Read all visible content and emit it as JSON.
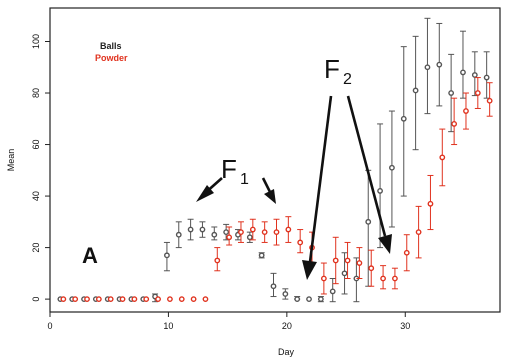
{
  "chart_data": {
    "type": "scatter",
    "xlabel": "Day",
    "ylabel": "Mean",
    "xlim": [
      0,
      38
    ],
    "ylim": [
      -5,
      113
    ],
    "xticks": [
      0,
      10,
      20,
      30
    ],
    "yticks": [
      0,
      20,
      40,
      60,
      80,
      100
    ],
    "legend": {
      "position": "top-left",
      "entries": [
        {
          "label": "Balls",
          "color": "#222222"
        },
        {
          "label": "Powder",
          "color": "#e0321e"
        }
      ]
    },
    "series": [
      {
        "name": "Balls",
        "color": "#555555",
        "marker": "open-circle",
        "points": [
          {
            "x": 1,
            "y": 0,
            "lo": 0,
            "hi": 0
          },
          {
            "x": 2,
            "y": 0,
            "lo": 0,
            "hi": 0
          },
          {
            "x": 3,
            "y": 0,
            "lo": 0,
            "hi": 0
          },
          {
            "x": 4,
            "y": 0,
            "lo": 0,
            "hi": 0
          },
          {
            "x": 5,
            "y": 0,
            "lo": 0,
            "hi": 0
          },
          {
            "x": 6,
            "y": 0,
            "lo": 0,
            "hi": 0
          },
          {
            "x": 7,
            "y": 0,
            "lo": 0,
            "hi": 0
          },
          {
            "x": 8,
            "y": 0,
            "lo": 0,
            "hi": 0
          },
          {
            "x": 9,
            "y": 1,
            "lo": -1,
            "hi": 2
          },
          {
            "x": 10,
            "y": 17,
            "lo": 11,
            "hi": 22
          },
          {
            "x": 11,
            "y": 25,
            "lo": 20,
            "hi": 30
          },
          {
            "x": 12,
            "y": 27,
            "lo": 23,
            "hi": 31
          },
          {
            "x": 13,
            "y": 27,
            "lo": 24,
            "hi": 30
          },
          {
            "x": 14,
            "y": 25,
            "lo": 23,
            "hi": 28
          },
          {
            "x": 15,
            "y": 26,
            "lo": 23,
            "hi": 29
          },
          {
            "x": 16,
            "y": 25,
            "lo": 23,
            "hi": 27
          },
          {
            "x": 17,
            "y": 24,
            "lo": 22,
            "hi": 26
          },
          {
            "x": 18,
            "y": 17,
            "lo": 16,
            "hi": 18
          },
          {
            "x": 19,
            "y": 5,
            "lo": 1,
            "hi": 10
          },
          {
            "x": 20,
            "y": 2,
            "lo": 0,
            "hi": 4
          },
          {
            "x": 21,
            "y": 0,
            "lo": 0,
            "hi": 1
          },
          {
            "x": 22,
            "y": 0,
            "lo": 0,
            "hi": 0
          },
          {
            "x": 23,
            "y": 0,
            "lo": -1,
            "hi": 1
          },
          {
            "x": 24,
            "y": 3,
            "lo": -1,
            "hi": 8
          },
          {
            "x": 25,
            "y": 10,
            "lo": 2,
            "hi": 18
          },
          {
            "x": 26,
            "y": 8,
            "lo": -1,
            "hi": 16
          },
          {
            "x": 27,
            "y": 30,
            "lo": 5,
            "hi": 50
          },
          {
            "x": 28,
            "y": 42,
            "lo": 20,
            "hi": 68
          },
          {
            "x": 29,
            "y": 51,
            "lo": 28,
            "hi": 73
          },
          {
            "x": 30,
            "y": 70,
            "lo": 40,
            "hi": 98
          },
          {
            "x": 31,
            "y": 81,
            "lo": 58,
            "hi": 102
          },
          {
            "x": 32,
            "y": 90,
            "lo": 72,
            "hi": 109
          },
          {
            "x": 33,
            "y": 91,
            "lo": 75,
            "hi": 107
          },
          {
            "x": 34,
            "y": 80,
            "lo": 65,
            "hi": 95
          },
          {
            "x": 35,
            "y": 88,
            "lo": 78,
            "hi": 104
          },
          {
            "x": 36,
            "y": 87,
            "lo": 79,
            "hi": 96
          },
          {
            "x": 37,
            "y": 86,
            "lo": 78,
            "hi": 96
          }
        ]
      },
      {
        "name": "Powder",
        "color": "#e0321e",
        "marker": "open-circle",
        "points": [
          {
            "x": 1,
            "y": 0,
            "lo": 0,
            "hi": 0
          },
          {
            "x": 2,
            "y": 0,
            "lo": 0,
            "hi": 0
          },
          {
            "x": 3,
            "y": 0,
            "lo": 0,
            "hi": 0
          },
          {
            "x": 4,
            "y": 0,
            "lo": 0,
            "hi": 0
          },
          {
            "x": 5,
            "y": 0,
            "lo": 0,
            "hi": 0
          },
          {
            "x": 6,
            "y": 0,
            "lo": 0,
            "hi": 0
          },
          {
            "x": 7,
            "y": 0,
            "lo": 0,
            "hi": 0
          },
          {
            "x": 8,
            "y": 0,
            "lo": 0,
            "hi": 0
          },
          {
            "x": 9,
            "y": 0,
            "lo": 0,
            "hi": 0
          },
          {
            "x": 10,
            "y": 0,
            "lo": 0,
            "hi": 0
          },
          {
            "x": 11,
            "y": 0,
            "lo": 0,
            "hi": 0
          },
          {
            "x": 12,
            "y": 0,
            "lo": 0,
            "hi": 0
          },
          {
            "x": 13,
            "y": 0,
            "lo": 0,
            "hi": 0
          },
          {
            "x": 14,
            "y": 15,
            "lo": 11,
            "hi": 20
          },
          {
            "x": 15,
            "y": 24,
            "lo": 21,
            "hi": 28
          },
          {
            "x": 16,
            "y": 26,
            "lo": 22,
            "hi": 30
          },
          {
            "x": 17,
            "y": 27,
            "lo": 23,
            "hi": 31
          },
          {
            "x": 18,
            "y": 26,
            "lo": 22,
            "hi": 30
          },
          {
            "x": 19,
            "y": 26,
            "lo": 21,
            "hi": 31
          },
          {
            "x": 20,
            "y": 27,
            "lo": 22,
            "hi": 32
          },
          {
            "x": 21,
            "y": 22,
            "lo": 18,
            "hi": 27
          },
          {
            "x": 22,
            "y": 20,
            "lo": 14,
            "hi": 26
          },
          {
            "x": 23,
            "y": 8,
            "lo": 2,
            "hi": 14
          },
          {
            "x": 24,
            "y": 15,
            "lo": 6,
            "hi": 24
          },
          {
            "x": 25,
            "y": 15,
            "lo": 8,
            "hi": 22
          },
          {
            "x": 26,
            "y": 14,
            "lo": 8,
            "hi": 20
          },
          {
            "x": 27,
            "y": 12,
            "lo": 5,
            "hi": 19
          },
          {
            "x": 28,
            "y": 8,
            "lo": 4,
            "hi": 13
          },
          {
            "x": 29,
            "y": 8,
            "lo": 4,
            "hi": 12
          },
          {
            "x": 30,
            "y": 18,
            "lo": 11,
            "hi": 25
          },
          {
            "x": 31,
            "y": 26,
            "lo": 16,
            "hi": 36
          },
          {
            "x": 32,
            "y": 37,
            "lo": 27,
            "hi": 48
          },
          {
            "x": 33,
            "y": 55,
            "lo": 44,
            "hi": 66
          },
          {
            "x": 34,
            "y": 68,
            "lo": 60,
            "hi": 78
          },
          {
            "x": 35,
            "y": 73,
            "lo": 66,
            "hi": 80
          },
          {
            "x": 36,
            "y": 80,
            "lo": 74,
            "hi": 86
          },
          {
            "x": 37,
            "y": 77,
            "lo": 71,
            "hi": 84
          }
        ]
      }
    ],
    "annotations": {
      "panel_letter": "A",
      "f1": {
        "letter": "F",
        "sub": "1"
      },
      "f2": {
        "letter": "F",
        "sub": "2"
      }
    }
  }
}
